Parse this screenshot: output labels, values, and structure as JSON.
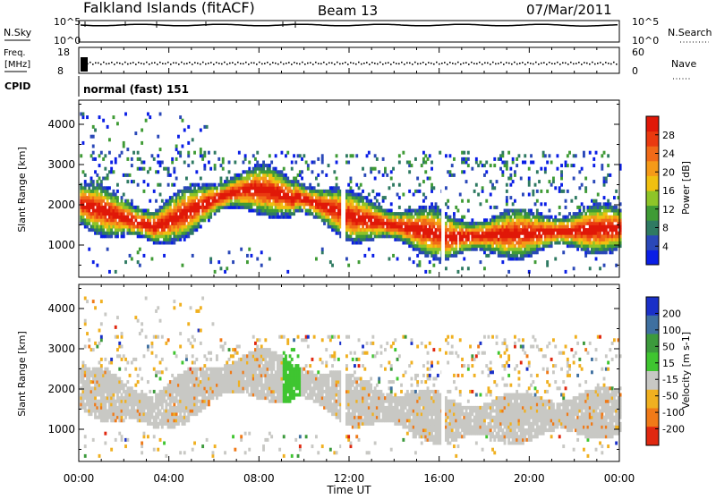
{
  "header": {
    "station": "Falkland Islands (fitACF)",
    "beam": "Beam 13",
    "date": "07/Mar/2011"
  },
  "top_panels": {
    "nsky_label": "N.Sky",
    "nsky_top": "10^5",
    "nsky_bottom": "10^0",
    "nsearch_label": "N.Search",
    "nsearch_top": "10^5",
    "nsearch_bottom": "10^0",
    "freq_label_1": "Freq.",
    "freq_label_2": "[MHz]",
    "freq_top": "18",
    "freq_bottom": "8",
    "nave_label": "Nave",
    "nave_top": "60",
    "nave_bottom": "0",
    "cpid_label": "CPID",
    "cpid_value": "normal (fast) 151"
  },
  "chart_data": [
    {
      "type": "heatmap",
      "ylabel": "Slant Range [km]",
      "yticks": [
        1000,
        2000,
        3000,
        4000
      ],
      "ylim": [
        200,
        4600
      ],
      "xlim_hours": [
        0,
        24
      ],
      "colorbar_label": "Power [dB]",
      "colorbar_ticks": [
        "4",
        "8",
        "12",
        "16",
        "20",
        "24",
        "28"
      ],
      "colorbar_colors": [
        "#0a1ee6",
        "#2a48b8",
        "#2f7a62",
        "#3f9b35",
        "#8ec428",
        "#f0c010",
        "#f59a18",
        "#f06a18",
        "#ea3a10",
        "#e01808"
      ]
    },
    {
      "type": "heatmap",
      "ylabel": "Slant Range [km]",
      "yticks": [
        1000,
        2000,
        3000,
        4000
      ],
      "ylim": [
        200,
        4600
      ],
      "xlim_hours": [
        0,
        24
      ],
      "colorbar_label": "Velocity [m s-1]",
      "colorbar_ticks": [
        "200",
        "100",
        "50",
        "15",
        "-15",
        "-50",
        "-100",
        "-200"
      ],
      "colorbar_colors": [
        "#1a30c8",
        "#3f70a0",
        "#3c9a3c",
        "#3fc530",
        "#c8c8c4",
        "#f0b020",
        "#f07a18",
        "#e02810"
      ]
    }
  ],
  "x_axis": {
    "ticks": [
      "00:00",
      "04:00",
      "08:00",
      "12:00",
      "16:00",
      "20:00",
      "00:00"
    ],
    "label": "Time UT"
  }
}
